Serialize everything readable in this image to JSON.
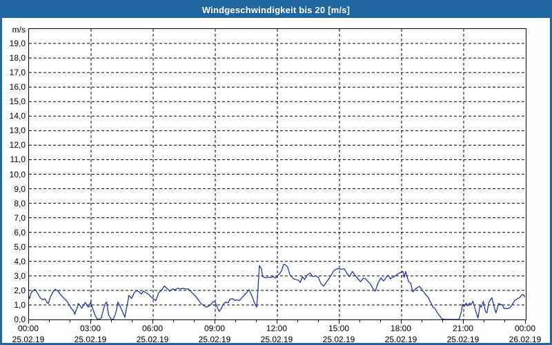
{
  "window": {
    "title": "Windgeschwindigkeit bis 20 [m/s]"
  },
  "colors": {
    "titlebar": "#2066a0",
    "window_border": "#2066a0",
    "line": "#2334ad",
    "grid": "#000000",
    "plot_bg": "#ffffff",
    "title_text": "#ffffff"
  },
  "chart_data": {
    "type": "line",
    "title": "Windgeschwindigkeit bis 20 [m/s]",
    "ylabel_unit": "m/s",
    "ylim": [
      0,
      20
    ],
    "xlim_hours": [
      0,
      24
    ],
    "grid": "dashed-black",
    "legend": "none",
    "y_ticks": [
      {
        "v": 0,
        "label": "0,0"
      },
      {
        "v": 1,
        "label": "1,0"
      },
      {
        "v": 2,
        "label": "2,0"
      },
      {
        "v": 3,
        "label": "3,0"
      },
      {
        "v": 4,
        "label": "4,0"
      },
      {
        "v": 5,
        "label": "5,0"
      },
      {
        "v": 6,
        "label": "6,0"
      },
      {
        "v": 7,
        "label": "7,0"
      },
      {
        "v": 8,
        "label": "8,0"
      },
      {
        "v": 9,
        "label": "9,0"
      },
      {
        "v": 10,
        "label": "10,0"
      },
      {
        "v": 11,
        "label": "11,0"
      },
      {
        "v": 12,
        "label": "12,0"
      },
      {
        "v": 13,
        "label": "13,0"
      },
      {
        "v": 14,
        "label": "14,0"
      },
      {
        "v": 15,
        "label": "15,0"
      },
      {
        "v": 16,
        "label": "16,0"
      },
      {
        "v": 17,
        "label": "17,0"
      },
      {
        "v": 18,
        "label": "18,0"
      },
      {
        "v": 19,
        "label": "19,0"
      }
    ],
    "x_ticks": [
      {
        "h": 0,
        "time": "00:00",
        "date": "25.02.19"
      },
      {
        "h": 3,
        "time": "03:00",
        "date": "25.02.19"
      },
      {
        "h": 6,
        "time": "06:00",
        "date": "25.02.19"
      },
      {
        "h": 9,
        "time": "09:00",
        "date": "25.02.19"
      },
      {
        "h": 12,
        "time": "12:00",
        "date": "25.02.19"
      },
      {
        "h": 15,
        "time": "15:00",
        "date": "25.02.19"
      },
      {
        "h": 18,
        "time": "18:00",
        "date": "25.02.19"
      },
      {
        "h": 21,
        "time": "21:00",
        "date": "25.02.19"
      },
      {
        "h": 24,
        "time": "00:00",
        "date": "26.02.19"
      }
    ],
    "minor_x_tick_hours": 1,
    "series": [
      {
        "name": "Windgeschwindigkeit",
        "unit": "m/s",
        "points": [
          [
            0.0,
            1.6
          ],
          [
            0.03,
            1.43
          ],
          [
            0.1,
            1.83
          ],
          [
            0.2,
            2.0
          ],
          [
            0.3,
            2.08
          ],
          [
            0.44,
            1.75
          ],
          [
            0.54,
            1.5
          ],
          [
            0.67,
            1.35
          ],
          [
            0.77,
            1.43
          ],
          [
            0.87,
            1.17
          ],
          [
            0.94,
            1.1
          ],
          [
            1.04,
            1.58
          ],
          [
            1.17,
            1.92
          ],
          [
            1.27,
            2.08
          ],
          [
            1.37,
            2.0
          ],
          [
            1.51,
            1.75
          ],
          [
            1.61,
            1.58
          ],
          [
            1.71,
            1.42
          ],
          [
            1.84,
            1.25
          ],
          [
            1.94,
            1.0
          ],
          [
            2.04,
            0.77
          ],
          [
            2.18,
            0.52
          ],
          [
            2.21,
            0.35
          ],
          [
            2.35,
            0.93
          ],
          [
            2.38,
            1.1
          ],
          [
            2.48,
            0.93
          ],
          [
            2.55,
            0.77
          ],
          [
            2.65,
            1.02
          ],
          [
            2.72,
            1.18
          ],
          [
            2.82,
            0.93
          ],
          [
            2.88,
            0.85
          ],
          [
            2.98,
            1.2
          ],
          [
            3.05,
            0.85
          ],
          [
            3.18,
            0.35
          ],
          [
            3.28,
            0.05
          ],
          [
            3.39,
            0.0
          ],
          [
            3.49,
            0.1
          ],
          [
            3.62,
            0.8
          ],
          [
            3.69,
            1.1
          ],
          [
            3.75,
            1.2
          ],
          [
            3.85,
            0.3
          ],
          [
            3.96,
            0.05
          ],
          [
            4.06,
            0.0
          ],
          [
            4.16,
            0.3
          ],
          [
            4.22,
            0.6
          ],
          [
            4.29,
            1.2
          ],
          [
            4.42,
            0.85
          ],
          [
            4.53,
            0.5
          ],
          [
            4.63,
            0.15
          ],
          [
            4.73,
            0.9
          ],
          [
            4.83,
            1.65
          ],
          [
            4.96,
            1.45
          ],
          [
            5.09,
            1.85
          ],
          [
            5.2,
            2.0
          ],
          [
            5.33,
            1.9
          ],
          [
            5.43,
            1.75
          ],
          [
            5.53,
            1.95
          ],
          [
            5.63,
            1.85
          ],
          [
            5.77,
            1.75
          ],
          [
            5.9,
            1.55
          ],
          [
            6.03,
            1.4
          ],
          [
            6.13,
            1.3
          ],
          [
            6.27,
            1.85
          ],
          [
            6.4,
            2.0
          ],
          [
            6.54,
            2.3
          ],
          [
            6.7,
            2.1
          ],
          [
            6.8,
            1.95
          ],
          [
            6.94,
            2.1
          ],
          [
            7.07,
            2.05
          ],
          [
            7.17,
            2.15
          ],
          [
            7.31,
            2.1
          ],
          [
            7.44,
            2.15
          ],
          [
            7.58,
            2.1
          ],
          [
            7.71,
            2.1
          ],
          [
            7.81,
            1.95
          ],
          [
            7.94,
            1.75
          ],
          [
            8.08,
            1.55
          ],
          [
            8.21,
            1.3
          ],
          [
            8.31,
            1.1
          ],
          [
            8.45,
            0.95
          ],
          [
            8.55,
            0.85
          ],
          [
            8.65,
            0.9
          ],
          [
            8.78,
            1.0
          ],
          [
            8.88,
            1.2
          ],
          [
            8.98,
            1.25
          ],
          [
            9.08,
            0.9
          ],
          [
            9.18,
            0.55
          ],
          [
            9.29,
            0.75
          ],
          [
            9.39,
            1.05
          ],
          [
            9.49,
            1.2
          ],
          [
            9.62,
            1.15
          ],
          [
            9.72,
            1.4
          ],
          [
            9.85,
            1.43
          ],
          [
            9.95,
            1.3
          ],
          [
            10.06,
            1.35
          ],
          [
            10.16,
            1.3
          ],
          [
            10.32,
            1.55
          ],
          [
            10.49,
            1.8
          ],
          [
            10.63,
            2.05
          ],
          [
            10.73,
            1.75
          ],
          [
            10.83,
            1.4
          ],
          [
            10.89,
            1.15
          ],
          [
            11.0,
            0.85
          ],
          [
            11.06,
            2.0
          ],
          [
            11.13,
            3.7
          ],
          [
            11.23,
            3.5
          ],
          [
            11.29,
            2.95
          ],
          [
            11.43,
            2.87
          ],
          [
            11.56,
            2.9
          ],
          [
            11.7,
            2.9
          ],
          [
            11.8,
            2.95
          ],
          [
            11.9,
            2.85
          ],
          [
            12.0,
            3.0
          ],
          [
            12.1,
            3.15
          ],
          [
            12.2,
            3.35
          ],
          [
            12.3,
            3.8
          ],
          [
            12.4,
            3.75
          ],
          [
            12.5,
            3.6
          ],
          [
            12.6,
            3.1
          ],
          [
            12.74,
            2.85
          ],
          [
            12.87,
            2.75
          ],
          [
            13.01,
            2.7
          ],
          [
            13.11,
            2.55
          ],
          [
            13.21,
            2.95
          ],
          [
            13.31,
            2.75
          ],
          [
            13.44,
            3.05
          ],
          [
            13.58,
            3.2
          ],
          [
            13.71,
            2.95
          ],
          [
            13.84,
            3.0
          ],
          [
            13.98,
            2.9
          ],
          [
            14.11,
            2.45
          ],
          [
            14.25,
            2.3
          ],
          [
            14.38,
            2.6
          ],
          [
            14.58,
            3.0
          ],
          [
            14.75,
            3.4
          ],
          [
            14.92,
            3.5
          ],
          [
            15.08,
            3.45
          ],
          [
            15.22,
            3.5
          ],
          [
            15.35,
            3.2
          ],
          [
            15.49,
            2.95
          ],
          [
            15.62,
            3.3
          ],
          [
            15.75,
            3.05
          ],
          [
            15.89,
            2.8
          ],
          [
            16.02,
            2.6
          ],
          [
            16.16,
            2.85
          ],
          [
            16.26,
            2.8
          ],
          [
            16.39,
            2.6
          ],
          [
            16.49,
            2.45
          ],
          [
            16.63,
            2.1
          ],
          [
            16.73,
            1.95
          ],
          [
            16.86,
            2.5
          ],
          [
            17.0,
            2.85
          ],
          [
            17.13,
            2.65
          ],
          [
            17.26,
            2.9
          ],
          [
            17.36,
            3.05
          ],
          [
            17.46,
            2.8
          ],
          [
            17.56,
            2.9
          ],
          [
            17.7,
            3.0
          ],
          [
            17.83,
            3.15
          ],
          [
            17.97,
            3.25
          ],
          [
            18.07,
            3.3
          ],
          [
            18.13,
            2.9
          ],
          [
            18.2,
            3.3
          ],
          [
            18.34,
            2.6
          ],
          [
            18.44,
            2.5
          ],
          [
            18.54,
            1.9
          ],
          [
            18.67,
            2.1
          ],
          [
            18.77,
            2.2
          ],
          [
            18.87,
            2.28
          ],
          [
            19.04,
            1.95
          ],
          [
            19.17,
            1.7
          ],
          [
            19.27,
            1.55
          ],
          [
            19.37,
            1.27
          ],
          [
            19.51,
            0.87
          ],
          [
            19.61,
            0.75
          ],
          [
            19.71,
            0.5
          ],
          [
            19.84,
            0.25
          ],
          [
            19.94,
            0.05
          ],
          [
            20.11,
            0.0
          ],
          [
            20.45,
            0.0
          ],
          [
            20.78,
            0.0
          ],
          [
            20.88,
            0.5
          ],
          [
            20.95,
            1.05
          ],
          [
            21.02,
            0.9
          ],
          [
            21.12,
            1.13
          ],
          [
            21.18,
            0.93
          ],
          [
            21.29,
            1.13
          ],
          [
            21.35,
            1.0
          ],
          [
            21.45,
            1.25
          ],
          [
            21.55,
            0.72
          ],
          [
            21.69,
            0.1
          ],
          [
            21.79,
            0.95
          ],
          [
            21.85,
            0.85
          ],
          [
            21.95,
            1.25
          ],
          [
            22.05,
            0.55
          ],
          [
            22.12,
            0.45
          ],
          [
            22.22,
            1.2
          ],
          [
            22.36,
            1.5
          ],
          [
            22.46,
            0.95
          ],
          [
            22.52,
            0.62
          ],
          [
            22.56,
            0.45
          ],
          [
            22.69,
            1.1
          ],
          [
            22.76,
            1.05
          ],
          [
            22.86,
            1.0
          ],
          [
            22.96,
            0.75
          ],
          [
            23.06,
            0.75
          ],
          [
            23.16,
            0.75
          ],
          [
            23.26,
            0.85
          ],
          [
            23.36,
            1.05
          ],
          [
            23.46,
            1.3
          ],
          [
            23.56,
            1.4
          ],
          [
            23.7,
            1.5
          ],
          [
            23.8,
            1.68
          ],
          [
            23.86,
            1.73
          ],
          [
            23.96,
            1.55
          ]
        ]
      }
    ]
  }
}
